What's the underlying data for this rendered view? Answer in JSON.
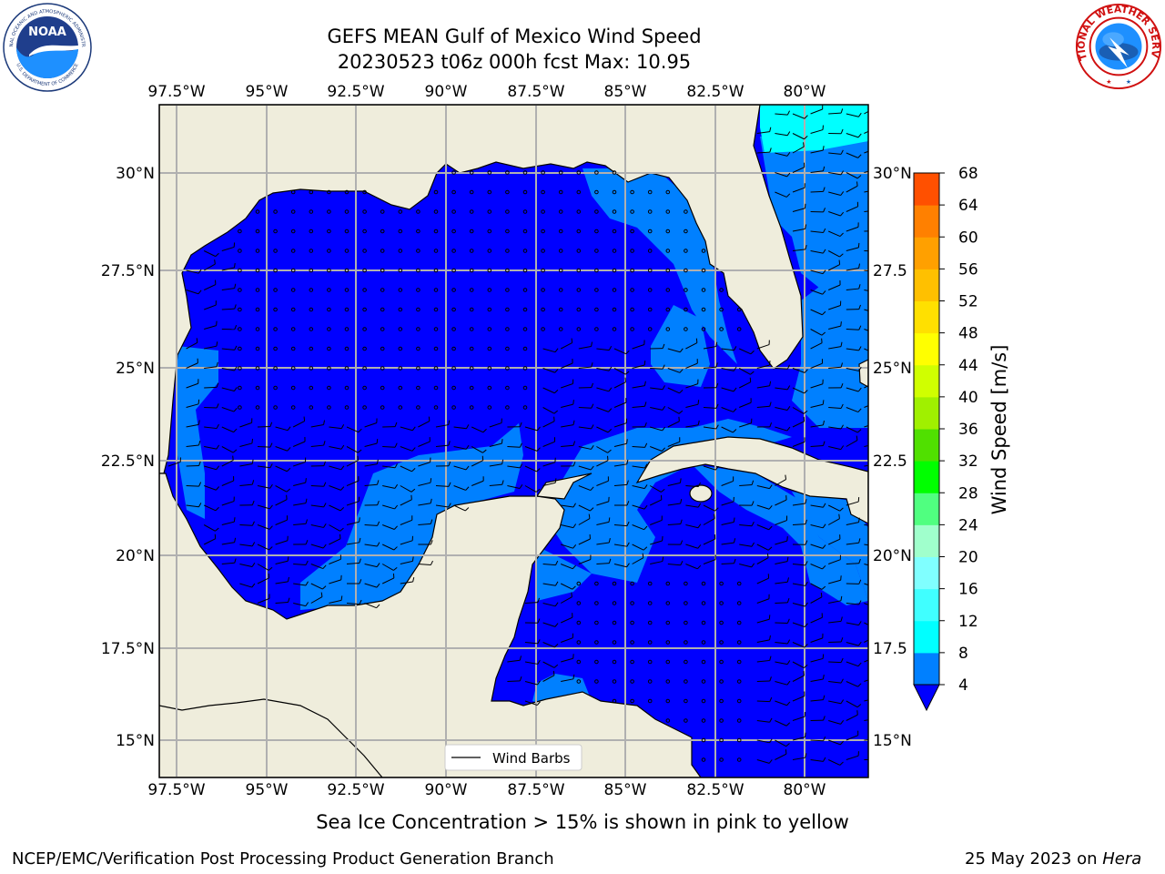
{
  "header": {
    "title_line1": "GEFS MEAN Gulf of Mexico Wind Speed",
    "title_line2": "20230523 t06z 000h fcst   Max: 10.95"
  },
  "logos": {
    "noaa_text": "NOAA",
    "noaa_ring": "NATIONAL OCEANIC AND ATMOSPHERIC ADMINISTRATION",
    "noaa_ring_bottom": "U.S. DEPARTMENT OF COMMERCE",
    "nws_ring": "NATIONAL WEATHER SERVICE"
  },
  "map": {
    "lon_labels": [
      "97.5°W",
      "95°W",
      "92.5°W",
      "90°W",
      "87.5°W",
      "85°W",
      "82.5°W",
      "80°W"
    ],
    "lat_labels_left": [
      "30°N",
      "27.5°N",
      "25°N",
      "22.5°N",
      "20°N",
      "17.5°N",
      "15°N"
    ],
    "lat_labels_right": [
      "30°N",
      "27.5",
      "25°N",
      "22.5",
      "20°N",
      "17.5",
      "15°N"
    ],
    "legend_label": "Wind Barbs",
    "land_color": "#efeddc",
    "grid_color": "#b0b0b0"
  },
  "colorbar": {
    "label": "Wind Speed [m/s]",
    "ticks": [
      "68",
      "64",
      "60",
      "56",
      "52",
      "48",
      "44",
      "40",
      "36",
      "32",
      "28",
      "24",
      "20",
      "16",
      "12",
      "8",
      "4"
    ],
    "colors": [
      "#0000ff",
      "#0080ff",
      "#00ffff",
      "#40ffff",
      "#80ffff",
      "#a0ffcc",
      "#50ff80",
      "#00ff00",
      "#50e000",
      "#a0f000",
      "#d0ff00",
      "#ffff00",
      "#ffe000",
      "#ffc000",
      "#ffa000",
      "#ff8000",
      "#ff5000",
      "#ff2000",
      "#ff0000"
    ]
  },
  "footer": {
    "caption": "Sea Ice Concentration > 15% is shown in pink to yellow",
    "left": "NCEP/EMC/Verification Post Processing Product Generation Branch",
    "right_date": "25 May 2023 on",
    "right_host": "Hera"
  }
}
